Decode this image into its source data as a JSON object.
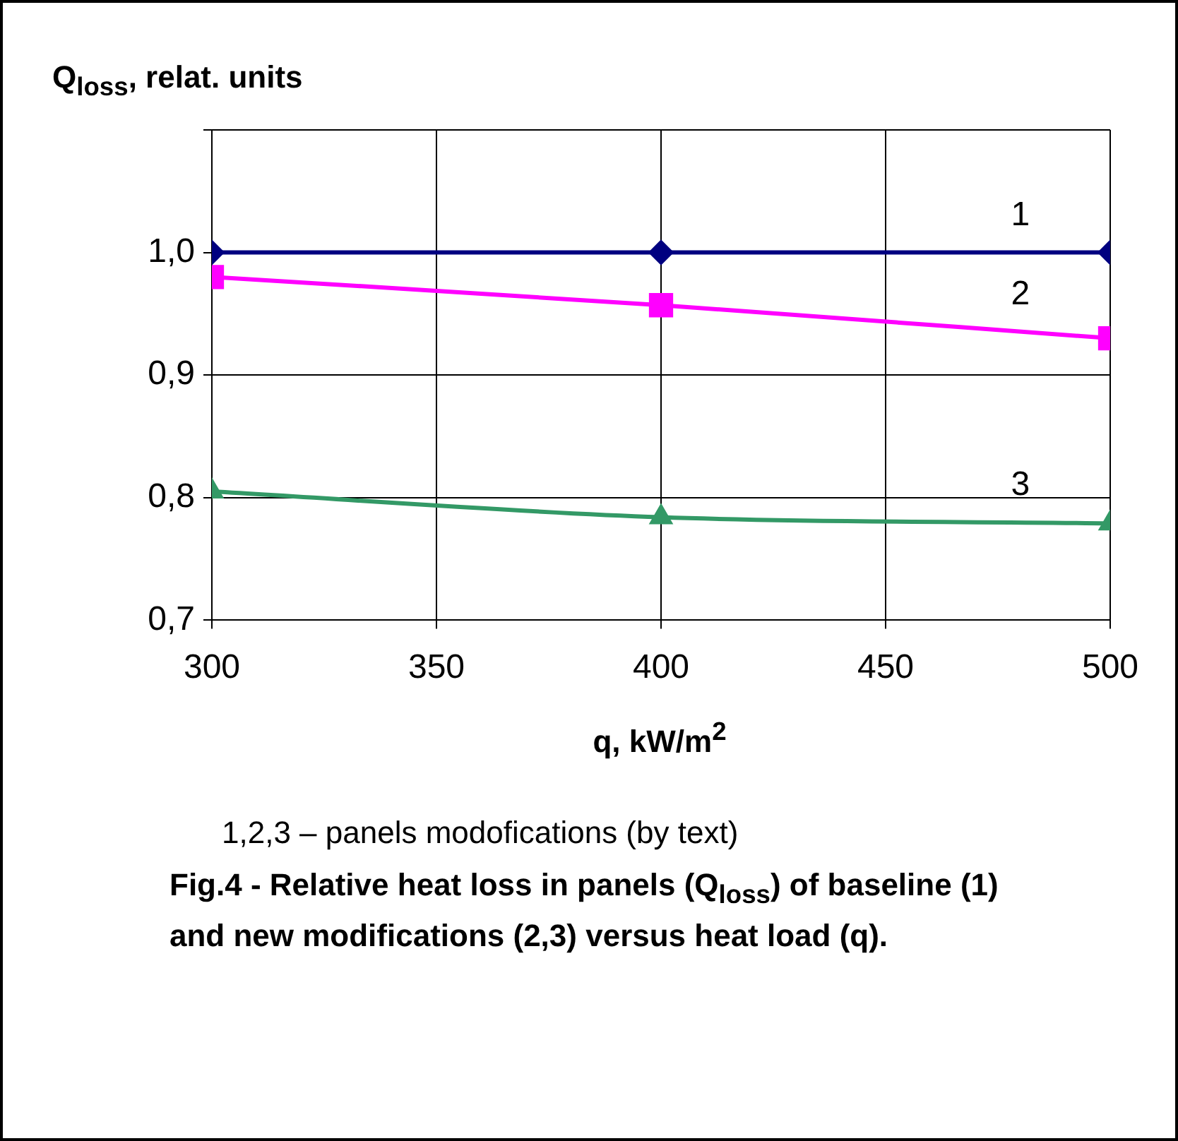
{
  "chart_data": {
    "type": "line",
    "ylabel": "Q$_{loss}$, relat. units",
    "xlabel": "q, kW/m$^{2}$",
    "annotations": [
      "1,2,3 – panels modofications (by text)",
      "Fig.4  -  Relative heat loss in panels (Q$_{loss}$)  of baseline (1) and new modifications (2,3) versus heat load (q)."
    ],
    "x": [
      300,
      400,
      500
    ],
    "xlim": [
      300,
      500
    ],
    "xticks": [
      300,
      350,
      400,
      450,
      500
    ],
    "ylim": [
      0.7,
      1.1
    ],
    "yticks": [
      {
        "value": 0.7,
        "label": "0,7"
      },
      {
        "value": 0.8,
        "label": "0,8"
      },
      {
        "value": 0.9,
        "label": "0,9"
      },
      {
        "value": 1.0,
        "label": "1,0"
      },
      {
        "value": 1.1,
        "label": null
      }
    ],
    "grid": true,
    "legend": false,
    "line_style": "solid",
    "series": [
      {
        "name": "1",
        "color": "#000080",
        "marker": "diamond",
        "values": [
          1.0,
          1.0,
          1.0
        ]
      },
      {
        "name": "2",
        "color": "#ff00ff",
        "marker": "square",
        "values": [
          0.98,
          0.957,
          0.93
        ]
      },
      {
        "name": "3",
        "color": "#339966",
        "marker": "triangle",
        "values": [
          0.805,
          0.784,
          0.779
        ]
      }
    ]
  }
}
